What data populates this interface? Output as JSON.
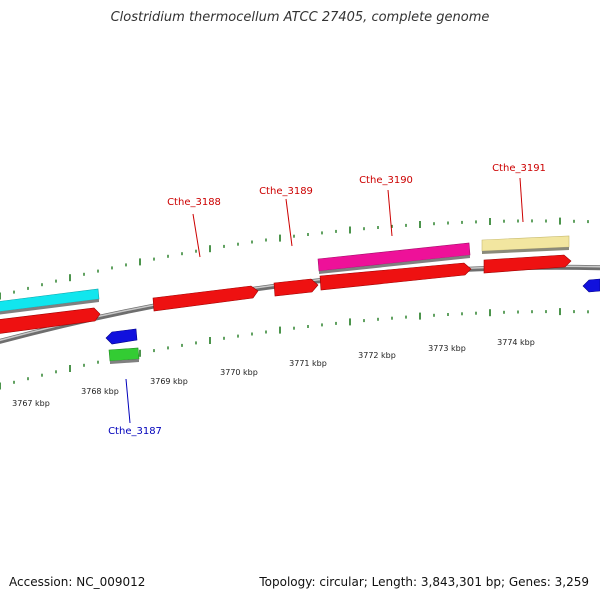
{
  "title": "Clostridium thermocellum ATCC 27405, complete genome",
  "footer": {
    "accession": "Accession: NC_009012",
    "summary": "Topology: circular; Length: 3,843,301 bp; Genes: 3,259"
  },
  "colors": {
    "backbone": "#8c8c8c",
    "tick": "#1f7a1f",
    "red_gene": "#ee1111",
    "blue_gene": "#1111dd",
    "green_gene": "#33cc33",
    "cyan_feature": "#11e6ee",
    "magenta_feature": "#ee1199",
    "tan_feature": "#f2e6a0",
    "label_red": "#cc0000",
    "label_blue": "#0000bb"
  },
  "kbp_labels": [
    "3767 kbp",
    "3768 kbp",
    "3769 kbp",
    "3770 kbp",
    "3771 kbp",
    "3772 kbp",
    "3773 kbp",
    "3774 kbp"
  ],
  "gene_labels": [
    {
      "text": "Cthe_3187",
      "strand": "reverse"
    },
    {
      "text": "Cthe_3188",
      "strand": "forward"
    },
    {
      "text": "Cthe_3189",
      "strand": "forward"
    },
    {
      "text": "Cthe_3190",
      "strand": "forward"
    },
    {
      "text": "Cthe_3191",
      "strand": "forward"
    }
  ]
}
